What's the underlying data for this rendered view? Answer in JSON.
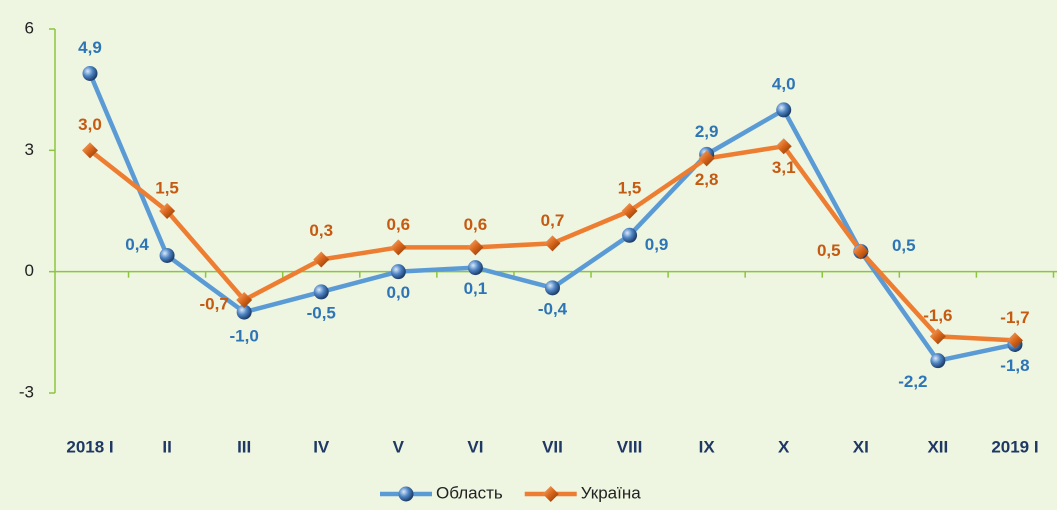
{
  "chart_data": {
    "type": "line",
    "categories": [
      "2018 I",
      "II",
      "III",
      "IV",
      "V",
      "VI",
      "VII",
      "VIII",
      "IX",
      "X",
      "XI",
      "XII",
      "2019 I"
    ],
    "series": [
      {
        "name": "Область",
        "color": "#5b9bd5",
        "label_color": "#2e75b6",
        "marker": "circle",
        "values": [
          4.9,
          0.4,
          -1.0,
          -0.5,
          0.0,
          0.1,
          -0.4,
          0.9,
          2.9,
          4.0,
          0.5,
          -2.2,
          -1.8
        ],
        "value_labels": [
          "4,9",
          "0,4",
          "-1,0",
          "-0,5",
          "0,0",
          "0,1",
          "-0,4",
          "0,9",
          "2,9",
          "4,0",
          "0,5",
          "-2,2",
          "-1,8"
        ]
      },
      {
        "name": "Україна",
        "color": "#ed7d31",
        "label_color": "#c55a11",
        "marker": "diamond",
        "values": [
          3.0,
          1.5,
          -0.7,
          0.3,
          0.6,
          0.6,
          0.7,
          1.5,
          2.8,
          3.1,
          0.5,
          -1.6,
          -1.7
        ],
        "value_labels": [
          "3,0",
          "1,5",
          "-0,7",
          "0,3",
          "0,6",
          "0,6",
          "0,7",
          "1,5",
          "2,8",
          "3,1",
          "0,5",
          "-1,6",
          "-1,7"
        ]
      }
    ],
    "ylim": [
      -3,
      6
    ],
    "yticks": [
      -3,
      0,
      3,
      6
    ],
    "grid": false,
    "legend": "bottom"
  }
}
